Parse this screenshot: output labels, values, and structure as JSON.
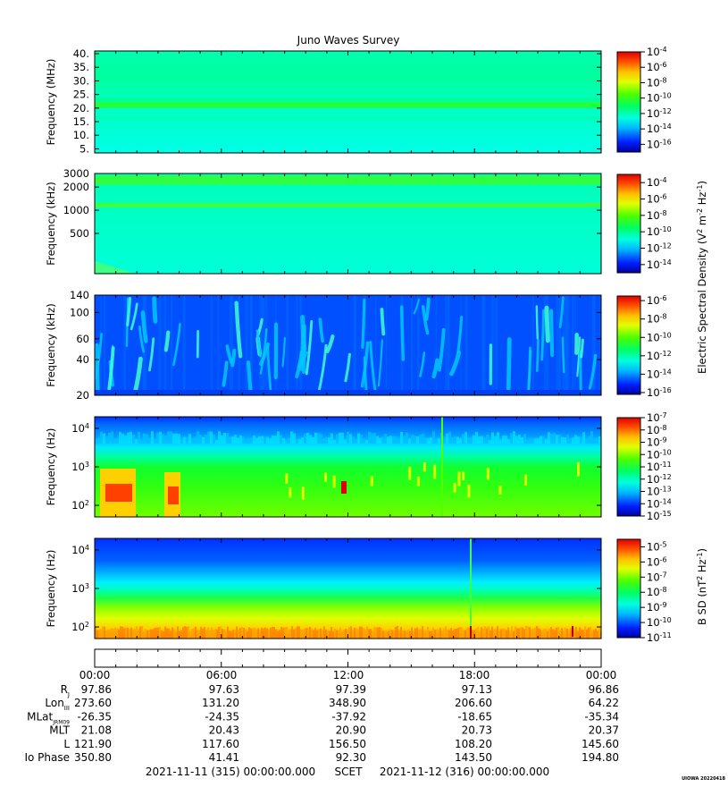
{
  "chart_data": {
    "type": "heatmap",
    "title": "Juno Waves Survey",
    "x_range": [
      "2021-11-11T00:00:00",
      "2021-11-12T00:00:00"
    ],
    "panels": [
      {
        "name": "panel-hf-mhz",
        "ylabel": "Frequency (MHz)",
        "yscale": "linear",
        "ylim": [
          3.5,
          41
        ],
        "yticks": [
          "40.",
          "35.",
          "30.",
          "25.",
          "20.",
          "15.",
          "10.",
          "5."
        ],
        "ytick_values": [
          40,
          35,
          30,
          25,
          20,
          15,
          10,
          5
        ],
        "colorbar_ticks": [
          "10-4",
          "10-6",
          "10-8",
          "10-10",
          "10-12",
          "10-14",
          "10-16"
        ],
        "colorbar_exponents": [
          -4,
          -6,
          -8,
          -10,
          -12,
          -14,
          -16
        ],
        "colorbar_range": [
          -17,
          -4
        ]
      },
      {
        "name": "panel-hf-khz",
        "ylabel": "Frequency (kHz)",
        "yscale": "log",
        "ylim": [
          150,
          3000
        ],
        "yticks": [
          "3000",
          "2000",
          "1000",
          "500"
        ],
        "ytick_values": [
          3000,
          2000,
          1000,
          500
        ],
        "colorbar_ticks": [
          "10-4",
          "10-6",
          "10-8",
          "10-10",
          "10-12",
          "10-14"
        ],
        "colorbar_exponents": [
          -4,
          -6,
          -8,
          -10,
          -12,
          -14
        ],
        "colorbar_range": [
          -15,
          -3
        ]
      },
      {
        "name": "panel-lf-khz",
        "ylabel": "Frequency (kHz)",
        "yscale": "log",
        "ylim": [
          20,
          140
        ],
        "yticks": [
          "140",
          "100",
          "60",
          "40",
          "20"
        ],
        "ytick_values": [
          140,
          100,
          60,
          40,
          20
        ],
        "colorbar_ticks": [
          "10-6",
          "10-8",
          "10-10",
          "10-12",
          "10-14",
          "10-16"
        ],
        "colorbar_exponents": [
          -6,
          -8,
          -10,
          -12,
          -14,
          -16
        ],
        "colorbar_range": [
          -16.2,
          -5.5
        ]
      },
      {
        "name": "panel-lfr-e",
        "ylabel": "Frequency (Hz)",
        "yscale": "log",
        "ylim": [
          50,
          20000
        ],
        "yticks": [
          "10",
          "10",
          "10"
        ],
        "ytick_exponents": [
          "4",
          "3",
          "2"
        ],
        "ytick_values": [
          10000,
          1000,
          100
        ],
        "colorbar_ticks": [
          "10-7",
          "10-8",
          "10-9",
          "10-10",
          "10-11",
          "10-12",
          "10-13",
          "10-14",
          "10-15"
        ],
        "colorbar_exponents": [
          -7,
          -8,
          -9,
          -10,
          -11,
          -12,
          -13,
          -14,
          -15
        ],
        "colorbar_range": [
          -15,
          -7
        ]
      },
      {
        "name": "panel-lfr-b",
        "ylabel": "Frequency (Hz)",
        "yscale": "log",
        "ylim": [
          50,
          20000
        ],
        "yticks": [
          "10",
          "10",
          "10"
        ],
        "ytick_exponents": [
          "4",
          "3",
          "2"
        ],
        "ytick_values": [
          10000,
          1000,
          100
        ],
        "colorbar_ticks": [
          "10-5",
          "10-6",
          "10-7",
          "10-8",
          "10-9",
          "10-10",
          "10-11"
        ],
        "colorbar_exponents": [
          -5,
          -6,
          -7,
          -8,
          -9,
          -10,
          -11
        ],
        "colorbar_range": [
          -11,
          -4.5
        ]
      }
    ],
    "colorbar_labels": {
      "electric": "Electric Spectral Density (V2 m-2 Hz-1)",
      "magnetic": "B SD (nT2 Hz-1)"
    },
    "ephemeris": {
      "time_labels": [
        "00:00",
        "06:00",
        "12:00",
        "18:00",
        "00:00"
      ],
      "rows": [
        {
          "label": "RJ",
          "values": [
            "97.86",
            "97.63",
            "97.39",
            "97.13",
            "96.86"
          ]
        },
        {
          "label": "LonIII",
          "values": [
            "273.60",
            "131.20",
            "348.90",
            "206.60",
            "64.22"
          ]
        },
        {
          "label": "MLatJRM09",
          "values": [
            "-26.35",
            "-24.35",
            "-37.92",
            "-18.65",
            "-35.34"
          ]
        },
        {
          "label": "MLT",
          "values": [
            "21.08",
            "20.43",
            "20.90",
            "20.73",
            "20.37"
          ]
        },
        {
          "label": "L",
          "values": [
            "121.90",
            "117.60",
            "156.50",
            "108.20",
            "145.60"
          ]
        },
        {
          "label": "Io Phase",
          "values": [
            "350.80",
            "41.41",
            "92.30",
            "143.50",
            "194.80"
          ]
        }
      ]
    },
    "footer": {
      "start": "2021-11-11 (315) 00:00:00.000",
      "scet": "SCET",
      "end": "2021-11-12 (316) 00:00:00.000"
    },
    "credit": "UIOWA 20220418"
  }
}
